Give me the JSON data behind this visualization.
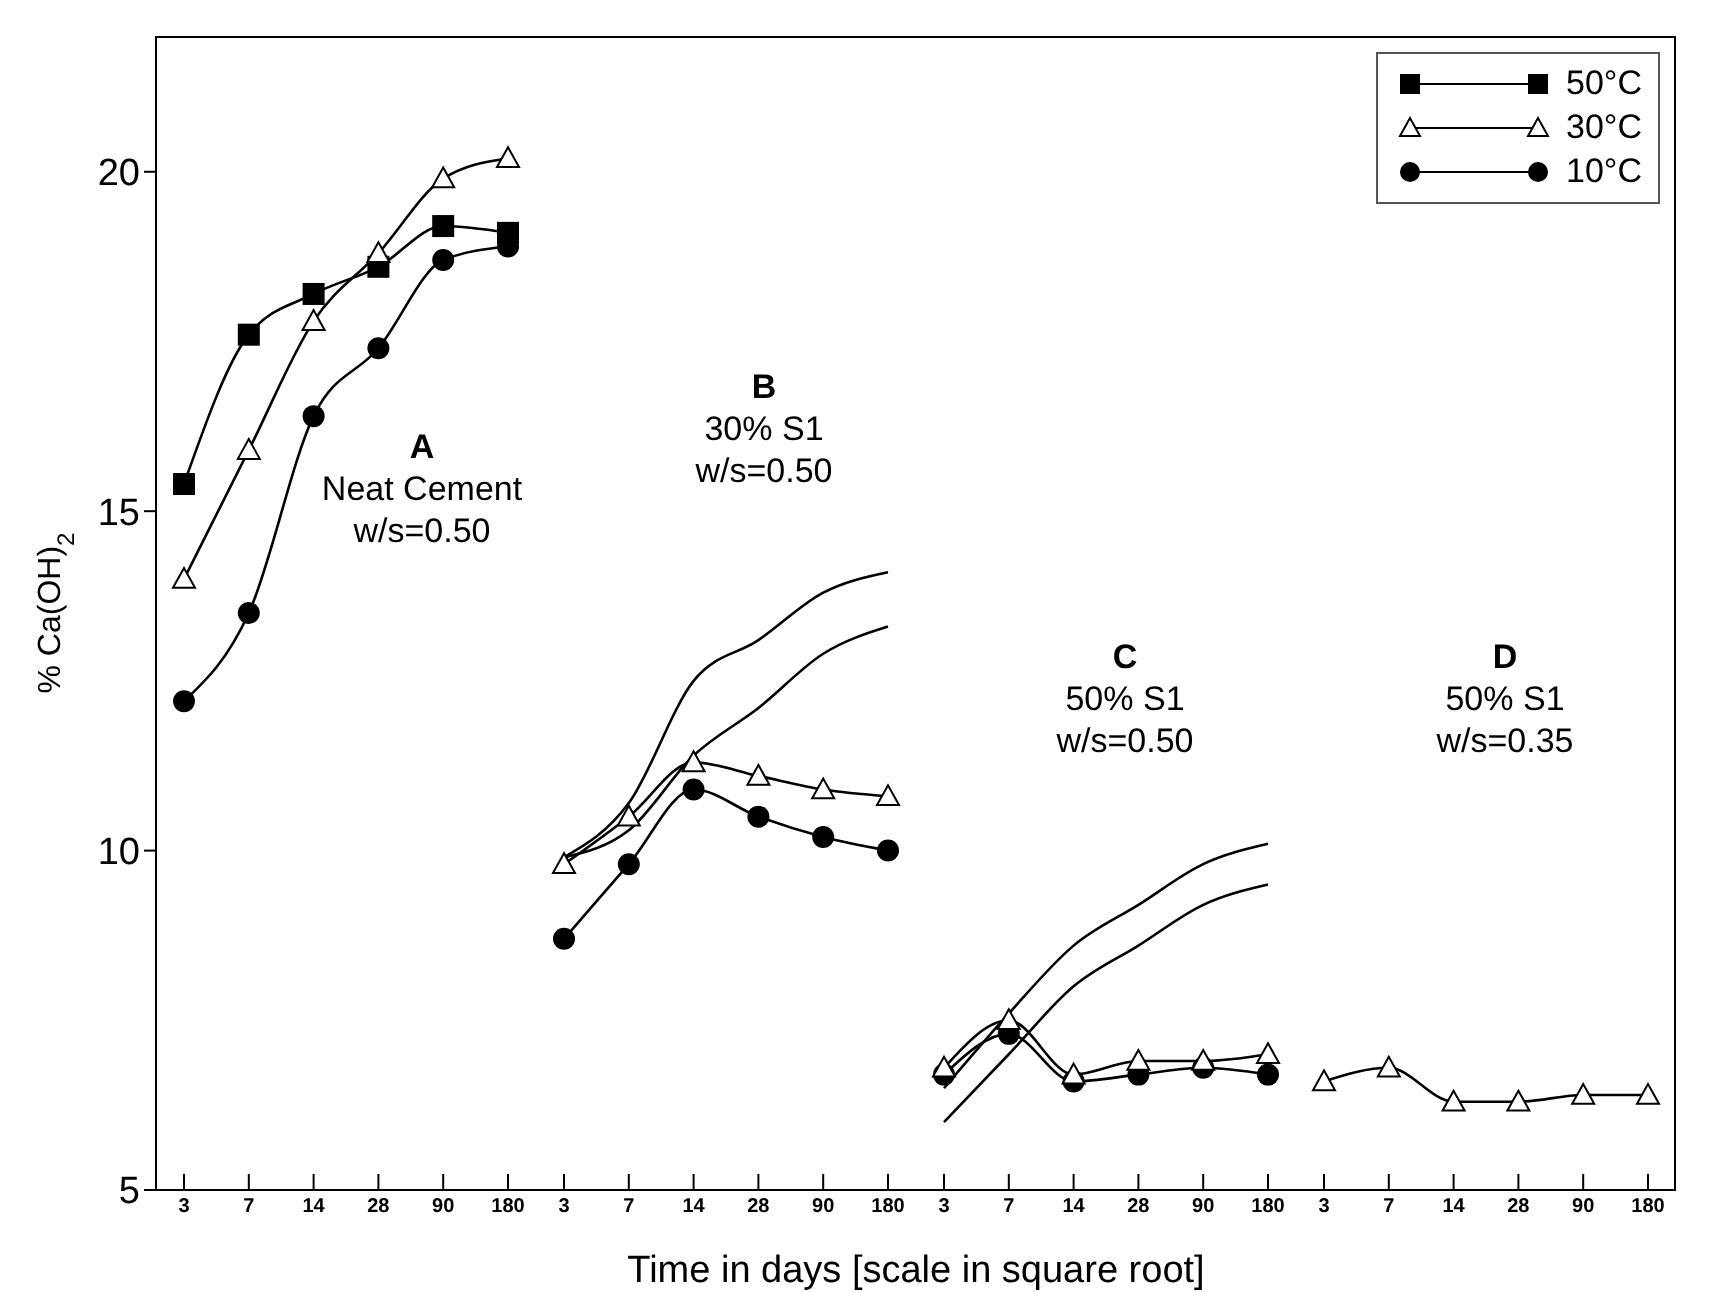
{
  "chart_data": [
    {
      "type": "line",
      "ylabel": "% Ca(OH)$_{2}$",
      "xlabel": "Time in days  [scale in square root]",
      "categories": [
        "3",
        "7",
        "14",
        "28",
        "90",
        "180"
      ],
      "ylim": [
        5,
        22
      ],
      "yticks": [
        5,
        10,
        15,
        20
      ],
      "legend": "top right",
      "annotations": [
        "A",
        "Neat Cement",
        "w/s=0.50"
      ],
      "series": [
        {
          "name": "50°C",
          "color": "#000000",
          "marker": "square",
          "values": [
            15.4,
            17.6,
            18.2,
            18.6,
            19.2,
            19.1
          ]
        },
        {
          "name": "30°C",
          "color": "#000000",
          "marker": "triangle",
          "values": [
            14.0,
            15.9,
            17.8,
            18.8,
            19.9,
            20.2
          ]
        },
        {
          "name": "10°C",
          "color": "#000000",
          "marker": "circle",
          "values": [
            12.2,
            13.5,
            16.4,
            17.4,
            18.7,
            18.9
          ]
        }
      ]
    },
    {
      "type": "line",
      "categories": [
        "3",
        "7",
        "14",
        "28",
        "90",
        "180"
      ],
      "ylim": [
        5,
        22
      ],
      "yticks": [
        5,
        10,
        15,
        20
      ],
      "tick_labels": "x",
      "annotations": [
        "B",
        "30% S1",
        "w/s=0.50"
      ],
      "series": [
        {
          "name": "30°C",
          "color": "#000000",
          "marker": "triangle",
          "values": [
            9.8,
            10.5,
            11.3,
            11.1,
            10.9,
            10.8
          ]
        },
        {
          "name": "10°C",
          "color": "#000000",
          "marker": "circle",
          "values": [
            8.7,
            9.8,
            10.9,
            10.5,
            10.2,
            10.0
          ]
        },
        {
          "color": "#000000",
          "marker": "none",
          "values": [
            9.9,
            10.7,
            12.5,
            13.1,
            13.8,
            14.1
          ]
        },
        {
          "color": "#000000",
          "marker": "none",
          "values": [
            9.9,
            10.3,
            11.4,
            12.1,
            12.9,
            13.3
          ]
        }
      ]
    },
    {
      "type": "line",
      "categories": [
        "3",
        "7",
        "14",
        "28",
        "90",
        "180"
      ],
      "ylim": [
        5,
        22
      ],
      "yticks": [
        5,
        10,
        15,
        20
      ],
      "tick_labels": "x",
      "annotations": [
        "C",
        "50% S1",
        "w/s=0.50"
      ],
      "series": [
        {
          "name": "10°C",
          "color": "#000000",
          "marker": "circle",
          "values": [
            6.7,
            7.3,
            6.6,
            6.7,
            6.8,
            6.7
          ]
        },
        {
          "name": "30°C",
          "color": "#000000",
          "marker": "triangle",
          "values": [
            6.8,
            7.5,
            6.7,
            6.9,
            6.9,
            7.0
          ]
        },
        {
          "color": "#000000",
          "marker": "none",
          "values": [
            6.5,
            7.6,
            8.6,
            9.2,
            9.8,
            10.1
          ]
        },
        {
          "color": "#000000",
          "marker": "none",
          "values": [
            6.0,
            7.0,
            8.0,
            8.6,
            9.2,
            9.5
          ]
        }
      ]
    },
    {
      "type": "line",
      "categories": [
        "3",
        "7",
        "14",
        "28",
        "90",
        "180"
      ],
      "ylim": [
        5,
        22
      ],
      "yticks": [
        5,
        10,
        15,
        20
      ],
      "tick_labels": "x",
      "annotations": [
        "D",
        "50% S1",
        "w/s=0.35"
      ],
      "series": [
        {
          "name": "30°C",
          "color": "#000000",
          "marker": "triangle",
          "values": [
            6.6,
            6.8,
            6.3,
            6.3,
            6.4,
            6.4
          ]
        }
      ]
    }
  ]
}
